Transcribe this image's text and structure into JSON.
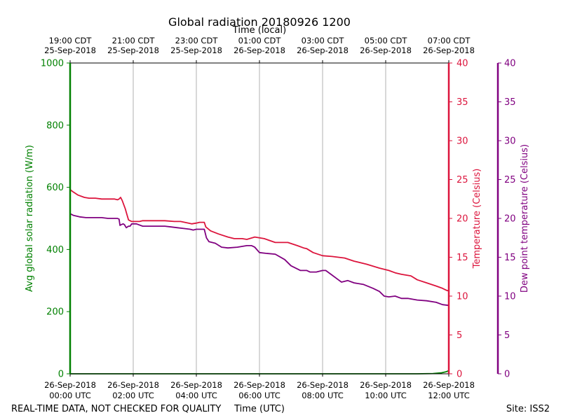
{
  "chart_data": {
    "type": "line",
    "title": "Global radiation 20180926 1200",
    "top_xlabel": "Time (local)",
    "xlabel": "Time (UTC)",
    "footer_left": "REAL-TIME DATA, NOT CHECKED FOR QUALITY",
    "footer_right": "Site: ISS2",
    "x_unit": "hours since 26-Sep-2018 00:00 UTC",
    "xlim": [
      0,
      12
    ],
    "grid": "vertical",
    "bottom_ticks": [
      {
        "x": 0,
        "date": "26-Sep-2018",
        "time": "00:00 UTC"
      },
      {
        "x": 2,
        "date": "26-Sep-2018",
        "time": "02:00 UTC"
      },
      {
        "x": 4,
        "date": "26-Sep-2018",
        "time": "04:00 UTC"
      },
      {
        "x": 6,
        "date": "26-Sep-2018",
        "time": "06:00 UTC"
      },
      {
        "x": 8,
        "date": "26-Sep-2018",
        "time": "08:00 UTC"
      },
      {
        "x": 10,
        "date": "26-Sep-2018",
        "time": "10:00 UTC"
      },
      {
        "x": 12,
        "date": "26-Sep-2018",
        "time": "12:00 UTC"
      }
    ],
    "top_ticks": [
      {
        "x": 0,
        "time": "19:00 CDT",
        "date": "25-Sep-2018"
      },
      {
        "x": 2,
        "time": "21:00 CDT",
        "date": "25-Sep-2018"
      },
      {
        "x": 4,
        "time": "23:00 CDT",
        "date": "25-Sep-2018"
      },
      {
        "x": 6,
        "time": "01:00 CDT",
        "date": "26-Sep-2018"
      },
      {
        "x": 8,
        "time": "03:00 CDT",
        "date": "26-Sep-2018"
      },
      {
        "x": 10,
        "time": "05:00 CDT",
        "date": "26-Sep-2018"
      },
      {
        "x": 12,
        "time": "07:00 CDT",
        "date": "26-Sep-2018"
      }
    ],
    "axes": {
      "radiation": {
        "label": "Avg global solar radiation (W/m)",
        "ylim": [
          0,
          1000
        ],
        "ticks": [
          0,
          200,
          400,
          600,
          800,
          1000
        ],
        "color": "#008000"
      },
      "temperature": {
        "label": "Temperature (Celsius)",
        "ylim": [
          0,
          40
        ],
        "ticks": [
          0,
          5,
          10,
          15,
          20,
          25,
          30,
          35,
          40
        ],
        "color": "#dc143c"
      },
      "dewpoint": {
        "label": "Dew point temperature (Celsius)",
        "ylim": [
          0,
          40
        ],
        "ticks": [
          0,
          5,
          10,
          15,
          20,
          25,
          30,
          35,
          40
        ],
        "color": "#800080"
      }
    },
    "series": [
      {
        "name": "Avg global solar radiation",
        "axis": "radiation",
        "color": "#008000",
        "x": [
          0,
          1,
          2,
          3,
          4,
          5,
          6,
          7,
          8,
          9,
          10,
          11,
          11.5,
          11.75,
          11.9,
          12
        ],
        "y": [
          0,
          0,
          0,
          0,
          0,
          0,
          0,
          0,
          0,
          0,
          0,
          0,
          1,
          3,
          6,
          10
        ]
      },
      {
        "name": "Temperature",
        "axis": "temperature",
        "color": "#dc143c",
        "x": [
          0,
          0.1,
          0.25,
          0.45,
          0.6,
          0.8,
          1.0,
          1.2,
          1.4,
          1.5,
          1.55,
          1.6,
          1.65,
          1.75,
          1.8,
          1.85,
          1.95,
          2.0,
          2.2,
          2.3,
          2.5,
          2.8,
          3.0,
          3.3,
          3.5,
          3.75,
          3.85,
          4.0,
          4.1,
          4.25,
          4.3,
          4.45,
          4.7,
          5.0,
          5.2,
          5.45,
          5.6,
          5.85,
          6.0,
          6.15,
          6.5,
          6.9,
          7.2,
          7.4,
          7.5,
          7.7,
          8.0,
          8.3,
          8.7,
          9.0,
          9.4,
          9.8,
          10.1,
          10.3,
          10.5,
          10.8,
          11.0,
          11.3,
          11.6,
          11.8,
          11.95,
          12.0
        ],
        "y": [
          23.7,
          23.4,
          23.0,
          22.7,
          22.6,
          22.6,
          22.5,
          22.5,
          22.5,
          22.4,
          22.5,
          22.7,
          22.3,
          21.2,
          20.5,
          19.8,
          19.6,
          19.6,
          19.6,
          19.7,
          19.7,
          19.7,
          19.7,
          19.6,
          19.6,
          19.4,
          19.3,
          19.4,
          19.5,
          19.5,
          18.9,
          18.4,
          18.0,
          17.6,
          17.4,
          17.4,
          17.3,
          17.6,
          17.5,
          17.4,
          16.9,
          16.9,
          16.5,
          16.2,
          16.1,
          15.6,
          15.2,
          15.1,
          14.9,
          14.5,
          14.1,
          13.6,
          13.3,
          13.0,
          12.8,
          12.6,
          12.1,
          11.7,
          11.3,
          11.0,
          10.7,
          10.7
        ]
      },
      {
        "name": "Dew point temperature",
        "axis": "dewpoint",
        "color": "#800080",
        "x": [
          0,
          0.1,
          0.3,
          0.5,
          0.8,
          1.0,
          1.2,
          1.4,
          1.5,
          1.55,
          1.58,
          1.62,
          1.68,
          1.72,
          1.78,
          1.85,
          1.9,
          1.95,
          2.0,
          2.1,
          2.3,
          2.6,
          3.0,
          3.2,
          3.4,
          3.6,
          3.8,
          3.9,
          4.0,
          4.1,
          4.25,
          4.32,
          4.4,
          4.6,
          4.8,
          5.0,
          5.3,
          5.6,
          5.75,
          5.85,
          6.0,
          6.2,
          6.5,
          6.8,
          7.0,
          7.3,
          7.5,
          7.6,
          7.8,
          8.0,
          8.1,
          8.3,
          8.5,
          8.6,
          8.8,
          9.0,
          9.3,
          9.6,
          9.8,
          9.95,
          10.1,
          10.3,
          10.5,
          10.7,
          11.0,
          11.3,
          11.6,
          11.8,
          12.0
        ],
        "y": [
          20.6,
          20.4,
          20.2,
          20.1,
          20.1,
          20.1,
          20.0,
          20.0,
          20.0,
          19.9,
          19.1,
          19.2,
          19.3,
          19.2,
          18.8,
          19.0,
          19.0,
          19.3,
          19.3,
          19.3,
          19.0,
          19.0,
          19.0,
          18.9,
          18.8,
          18.7,
          18.6,
          18.5,
          18.6,
          18.6,
          18.6,
          17.5,
          17.0,
          16.8,
          16.3,
          16.2,
          16.3,
          16.5,
          16.5,
          16.3,
          15.6,
          15.5,
          15.4,
          14.7,
          13.9,
          13.3,
          13.3,
          13.1,
          13.1,
          13.3,
          13.3,
          12.7,
          12.1,
          11.8,
          12.0,
          11.7,
          11.5,
          11.0,
          10.6,
          10.0,
          9.9,
          10.0,
          9.7,
          9.7,
          9.5,
          9.4,
          9.2,
          8.9,
          8.8
        ]
      }
    ]
  }
}
